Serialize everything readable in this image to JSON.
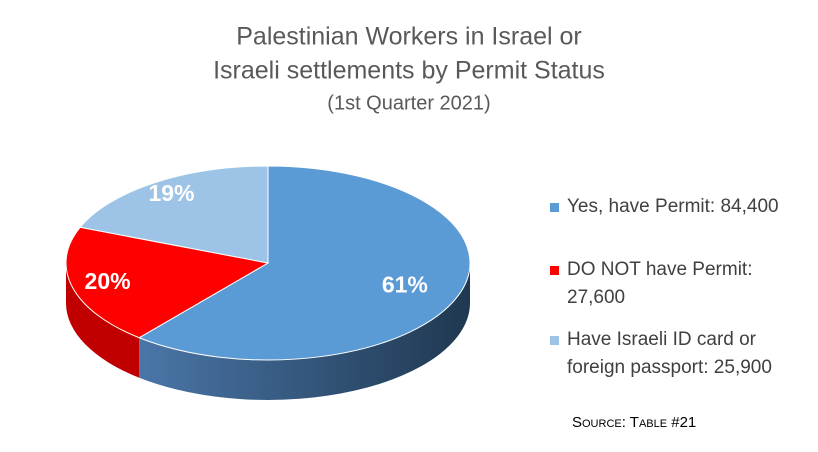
{
  "chart_data": {
    "type": "pie",
    "title": [
      "Palestinian Workers in Israel or",
      "Israeli settlements by Permit Status"
    ],
    "subtitle": "(1st Quarter 2021)",
    "categories": [
      "Yes, have Permit: 84,400",
      "DO NOT have Permit: 27,600",
      "Have Israeli ID card or foreign passport: 25,900"
    ],
    "values": [
      61,
      20,
      19
    ],
    "value_labels": [
      "61%",
      "20%",
      "19%"
    ],
    "colors": [
      "#5b9bd5",
      "#ff0000",
      "#9dc3e6"
    ],
    "legend": "right",
    "source": "Source: Table #21"
  }
}
